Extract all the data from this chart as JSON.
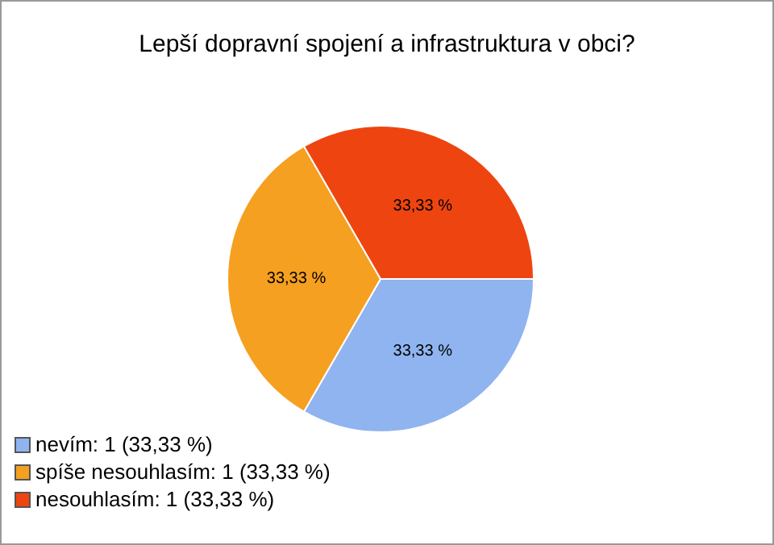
{
  "chart_data": {
    "type": "pie",
    "title": "Lepší dopravní spojení a infrastruktura v obci?",
    "categories": [
      "nevím: 1 (33,33 %)",
      "spíše nesouhlasím: 1 (33,33 %)",
      "nesouhlasím: 1 (33,33 %)"
    ],
    "values": [
      33.33,
      33.33,
      33.33
    ],
    "colors": [
      "#8fb4f0",
      "#f5a020",
      "#ee4510"
    ],
    "value_labels": [
      "33,33 %",
      "33,33 %",
      "33,33 %"
    ],
    "legend": "bottom left"
  }
}
